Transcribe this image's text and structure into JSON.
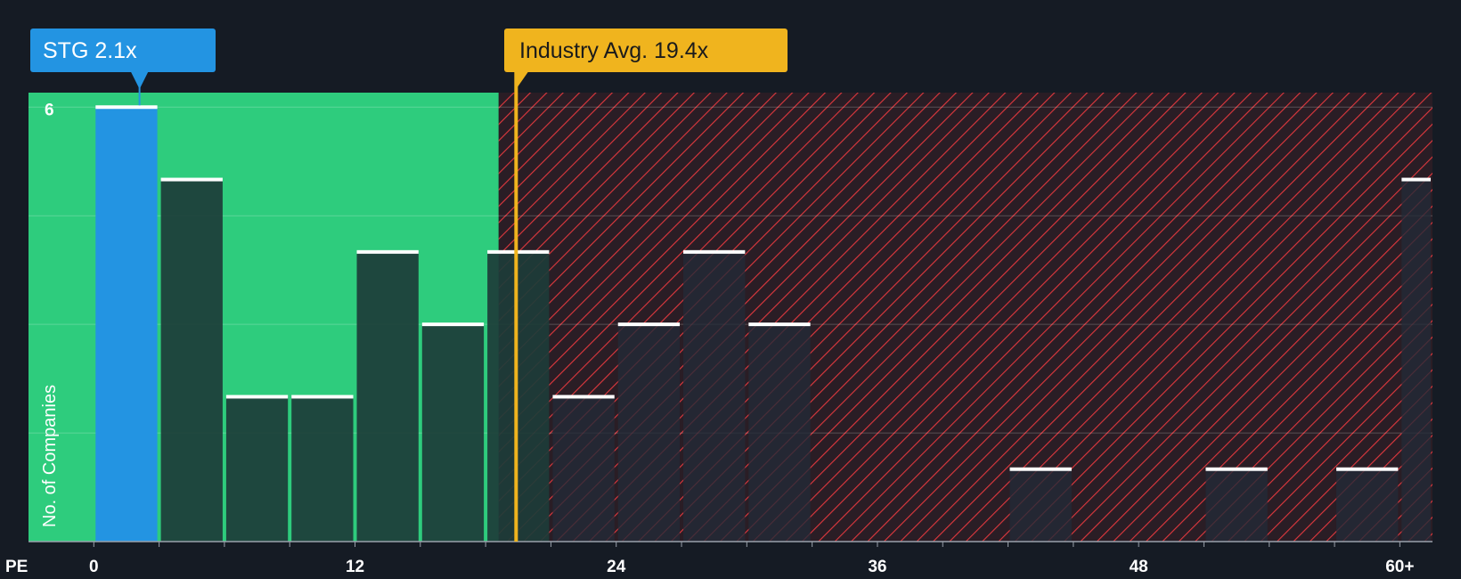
{
  "chart_data": {
    "type": "bar",
    "xlabel": "PE",
    "ylabel": "No. of Companies",
    "xlim": [
      -3,
      61.5
    ],
    "ylim": [
      0,
      6.2
    ],
    "x_ticks": [
      {
        "value": 0,
        "label": "0"
      },
      {
        "value": 12,
        "label": "12"
      },
      {
        "value": 24,
        "label": "24"
      },
      {
        "value": 36,
        "label": "36"
      },
      {
        "value": 48,
        "label": "48"
      },
      {
        "value": 60,
        "label": "60+"
      }
    ],
    "y_ticks": [
      {
        "value": 6,
        "label": "6"
      }
    ],
    "gridlines": [
      1.5,
      3,
      4.5,
      6
    ],
    "bins": [
      {
        "start": 0,
        "end": 3,
        "value": 6,
        "highlight": true
      },
      {
        "start": 3,
        "end": 6,
        "value": 5
      },
      {
        "start": 6,
        "end": 9,
        "value": 2
      },
      {
        "start": 9,
        "end": 12,
        "value": 2
      },
      {
        "start": 12,
        "end": 15,
        "value": 4
      },
      {
        "start": 15,
        "end": 18,
        "value": 3
      },
      {
        "start": 18,
        "end": 21,
        "value": 4
      },
      {
        "start": 21,
        "end": 24,
        "value": 2
      },
      {
        "start": 24,
        "end": 27,
        "value": 3
      },
      {
        "start": 27,
        "end": 30,
        "value": 4
      },
      {
        "start": 30,
        "end": 33,
        "value": 3
      },
      {
        "start": 42,
        "end": 45,
        "value": 1
      },
      {
        "start": 51,
        "end": 54,
        "value": 1
      },
      {
        "start": 57,
        "end": 60,
        "value": 1
      },
      {
        "start": 60,
        "end": 61.5,
        "value": 5
      }
    ],
    "good_value_region": {
      "from": -3,
      "to": 18.6
    },
    "stock": {
      "label": "STG 2.1x",
      "value": 2.1,
      "color": "#2394e2"
    },
    "industry": {
      "label": "Industry Avg. 19.4x",
      "value": 19.4,
      "color": "#f0b41e"
    },
    "colors": {
      "background": "#151b24",
      "good_region": "#2ecc7d",
      "bad_region": "#2a1d25",
      "hatch": "#e0383e",
      "bar_dark": "#1d3c38",
      "bar_over_red": "#232a37",
      "bar_cap": "#ffffff"
    }
  }
}
